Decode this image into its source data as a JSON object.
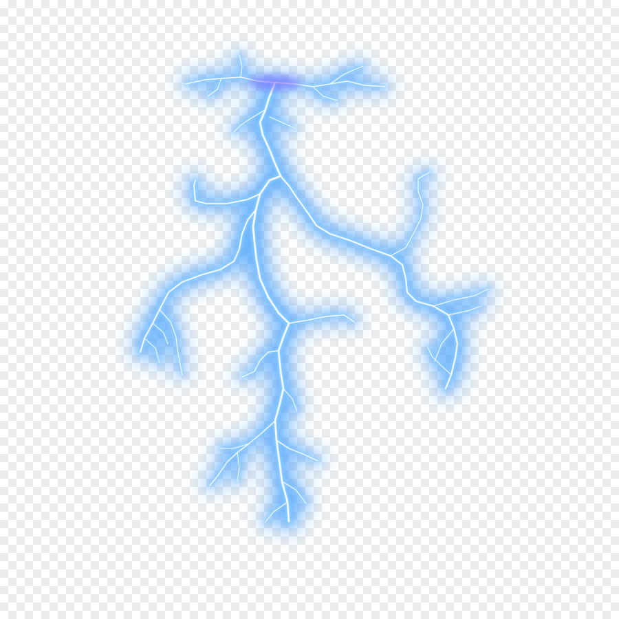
{
  "image": {
    "subject": "lightning-bolt",
    "background": "transparency-checkerboard",
    "colors": {
      "glow": "#1e8cff",
      "glow_soft": "#6fb6ff",
      "core": "#f4fbff",
      "accent_violet": "#7a5cff",
      "checker_light": "#ffffff",
      "checker_dark": "#ececec"
    }
  }
}
